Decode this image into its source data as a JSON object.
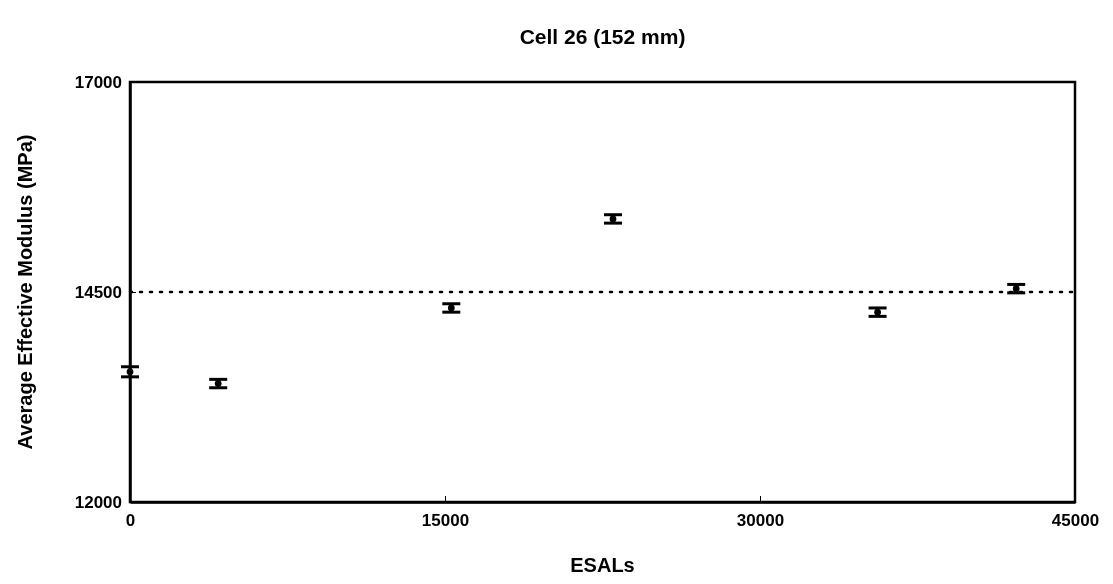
{
  "chart_data": {
    "type": "scatter",
    "title": "Cell 26 (152 mm)",
    "xlabel": "ESALs",
    "ylabel": "Average Effective Modulus (MPa)",
    "x": [
      0,
      4200,
      15300,
      23000,
      35600,
      42200
    ],
    "values": [
      13550,
      13410,
      14310,
      15370,
      14260,
      14540
    ],
    "errors": [
      60,
      50,
      50,
      50,
      50,
      50
    ],
    "color": "#000000",
    "marker": "none",
    "xlim": [
      0,
      45000
    ],
    "xticks": [
      0,
      15000,
      30000,
      45000
    ],
    "ylim": [
      12000,
      17000
    ],
    "yticks": [
      12000,
      14500,
      17000
    ],
    "ref_lines": [
      {
        "axis": "y",
        "value": 14500,
        "line_style": "dotted",
        "color": "#000000"
      }
    ],
    "grid": false
  }
}
